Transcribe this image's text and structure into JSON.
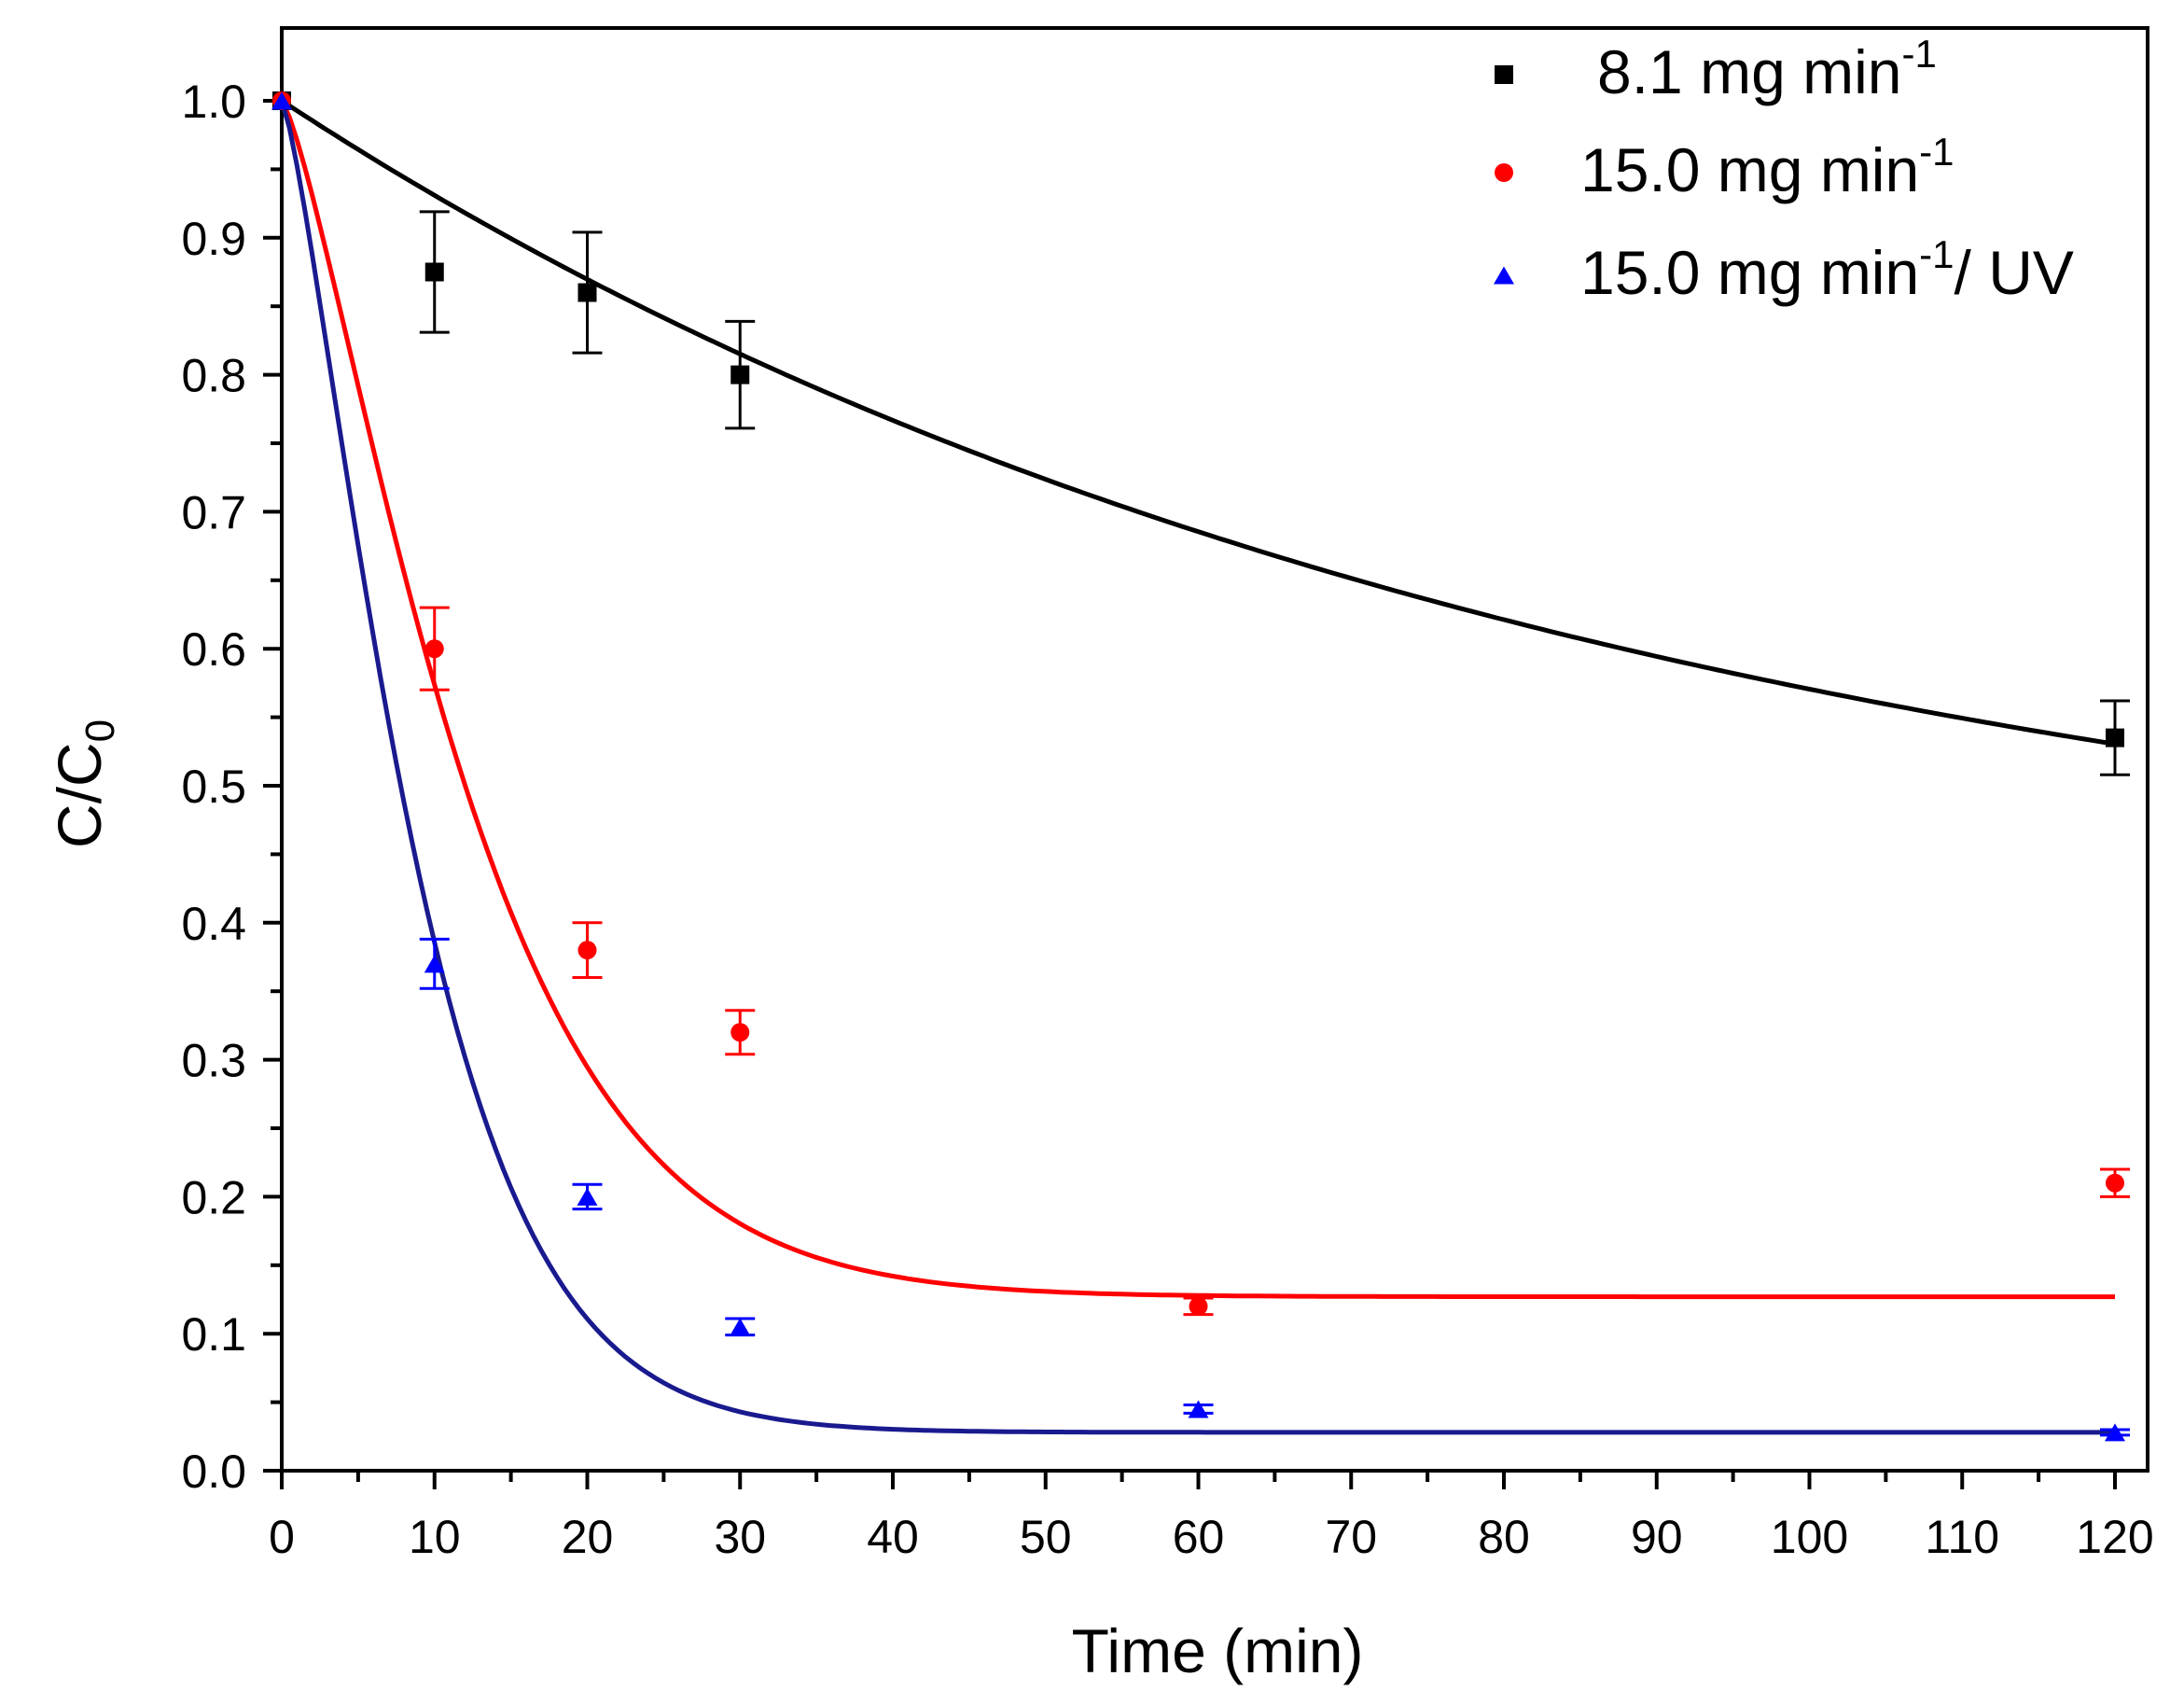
{
  "chart_data": {
    "type": "scatter",
    "title": "",
    "xlabel": "Time (min)",
    "ylabel": {
      "main": "C/C",
      "subscript": "0"
    },
    "xlim": [
      0,
      122
    ],
    "ylim": [
      0,
      1.03
    ],
    "xticks": [
      0,
      10,
      20,
      30,
      40,
      50,
      60,
      70,
      80,
      90,
      100,
      110,
      120
    ],
    "yticks": [
      0.0,
      0.1,
      0.2,
      0.3,
      0.4,
      0.5,
      0.6,
      0.7,
      0.8,
      0.9,
      1.0
    ],
    "ytick_labels": [
      "0.0",
      "0.1",
      "0.2",
      "0.3",
      "0.4",
      "0.5",
      "0.6",
      "0.7",
      "0.8",
      "0.9",
      "1.0"
    ],
    "grid": false,
    "legend_position": "top-right",
    "series": [
      {
        "name": "8.1 mg min-1",
        "legend": {
          "pre": "8.1 mg min",
          "sup": "-1",
          "post": ""
        },
        "color": "#000000",
        "fit_color": "#000000",
        "marker": "square",
        "x": [
          0,
          10,
          20,
          30,
          120
        ],
        "y": [
          1.0,
          0.875,
          0.86,
          0.8,
          0.535
        ],
        "err": [
          0.0,
          0.044,
          0.044,
          0.039,
          0.027
        ],
        "fit": {
          "model": "C0 + A*exp(-k*t)",
          "C0": 0.38,
          "A": 0.62,
          "k": 0.0118
        }
      },
      {
        "name": "15.0 mg min-1",
        "legend": {
          "pre": "15.0 mg min",
          "sup": "-1",
          "post": ""
        },
        "color": "#ff0000",
        "fit_color": "#ff0000",
        "marker": "circle",
        "x": [
          0,
          10,
          20,
          30,
          60,
          120
        ],
        "y": [
          1.0,
          0.6,
          0.38,
          0.32,
          0.12,
          0.21
        ],
        "err": [
          0.0,
          0.03,
          0.02,
          0.016,
          0.006,
          0.01
        ],
        "fit": {
          "model": "C0 + A*exp(-(k*t)^n)",
          "C0": 0.127,
          "A": 0.873,
          "k": 0.0735,
          "n": 1.3
        }
      },
      {
        "name": "15.0 mg min-1/ UV",
        "legend": {
          "pre": "15.0 mg min",
          "sup": "-1",
          "post": "/ UV"
        },
        "color": "#0000ff",
        "fit_color": "#1a1a8f",
        "marker": "triangle",
        "x": [
          0,
          10,
          20,
          30,
          60,
          120
        ],
        "y": [
          1.0,
          0.37,
          0.2,
          0.105,
          0.045,
          0.028
        ],
        "err": [
          0.0,
          0.018,
          0.009,
          0.006,
          0.003,
          0.002
        ],
        "fit": {
          "model": "C0 + A*exp(-(k*t)^n)",
          "C0": 0.028,
          "A": 0.972,
          "k": 0.1,
          "n": 1.3
        }
      }
    ]
  }
}
